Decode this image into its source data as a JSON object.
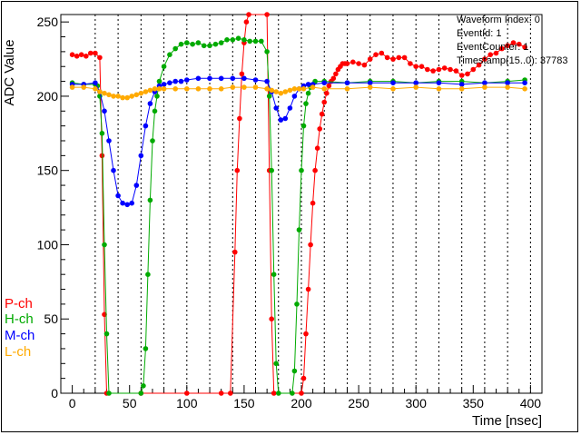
{
  "chart_data": {
    "type": "line",
    "xlabel": "Time [nsec]",
    "ylabel": "ADC Value",
    "xlim": [
      -10,
      410
    ],
    "ylim": [
      0,
      255
    ],
    "x_ticks": [
      0,
      50,
      100,
      150,
      200,
      250,
      300,
      350,
      400
    ],
    "y_ticks": [
      0,
      50,
      100,
      150,
      200,
      250
    ],
    "vertical_gridlines": [
      20,
      40,
      60,
      80,
      100,
      120,
      140,
      160,
      180,
      200,
      220,
      240,
      260,
      280,
      300,
      320,
      340,
      360,
      380,
      400
    ],
    "grid": "vertical dashed",
    "stats_box": [
      "Waveform Index: 0",
      "EventId: 1",
      "EventCounter: 1",
      "Timestamp(15..0): 37783"
    ],
    "legend": [
      {
        "label": "P-ch",
        "color": "#ff0000"
      },
      {
        "label": "H-ch",
        "color": "#00aa00"
      },
      {
        "label": "M-ch",
        "color": "#0000ff"
      },
      {
        "label": "L-ch",
        "color": "#ffaa00"
      }
    ],
    "series": [
      {
        "name": "P-ch",
        "color": "#ff0000",
        "points": [
          [
            0,
            228
          ],
          [
            4,
            227
          ],
          [
            8,
            228
          ],
          [
            12,
            227
          ],
          [
            16,
            229
          ],
          [
            20,
            229
          ],
          [
            24,
            226
          ],
          [
            26,
            160
          ],
          [
            28,
            53
          ],
          [
            30,
            0
          ],
          [
            60,
            0
          ],
          [
            100,
            0
          ],
          [
            130,
            0
          ],
          [
            138,
            0
          ],
          [
            142,
            95
          ],
          [
            144,
            150
          ],
          [
            146,
            185
          ],
          [
            148,
            215
          ],
          [
            150,
            236
          ],
          [
            152,
            250
          ],
          [
            154,
            255
          ],
          [
            170,
            255
          ],
          [
            172,
            150
          ],
          [
            174,
            50
          ],
          [
            176,
            0
          ],
          [
            200,
            0
          ],
          [
            202,
            10
          ],
          [
            204,
            40
          ],
          [
            206,
            70
          ],
          [
            208,
            100
          ],
          [
            210,
            128
          ],
          [
            212,
            150
          ],
          [
            214,
            165
          ],
          [
            216,
            178
          ],
          [
            218,
            188
          ],
          [
            220,
            196
          ],
          [
            222,
            202
          ],
          [
            224,
            207
          ],
          [
            226,
            210
          ],
          [
            228,
            212
          ],
          [
            230,
            215
          ],
          [
            232,
            218
          ],
          [
            234,
            220
          ],
          [
            236,
            222
          ],
          [
            238,
            222
          ],
          [
            240,
            222
          ],
          [
            245,
            223
          ],
          [
            250,
            222
          ],
          [
            255,
            221
          ],
          [
            260,
            225
          ],
          [
            265,
            228
          ],
          [
            270,
            229
          ],
          [
            275,
            226
          ],
          [
            280,
            225
          ],
          [
            285,
            226
          ],
          [
            290,
            226
          ],
          [
            295,
            222
          ],
          [
            300,
            220
          ],
          [
            305,
            220
          ],
          [
            310,
            218
          ],
          [
            315,
            217
          ],
          [
            320,
            218
          ],
          [
            325,
            219
          ],
          [
            330,
            218
          ],
          [
            335,
            217
          ],
          [
            340,
            214
          ],
          [
            345,
            215
          ],
          [
            350,
            218
          ],
          [
            355,
            221
          ],
          [
            360,
            225
          ],
          [
            365,
            228
          ],
          [
            370,
            229
          ],
          [
            375,
            232
          ],
          [
            380,
            234
          ],
          [
            385,
            236
          ],
          [
            390,
            235
          ],
          [
            395,
            233
          ]
        ]
      },
      {
        "name": "H-ch",
        "color": "#00aa00",
        "points": [
          [
            0,
            209
          ],
          [
            10,
            208
          ],
          [
            20,
            208
          ],
          [
            22,
            207
          ],
          [
            24,
            200
          ],
          [
            26,
            175
          ],
          [
            28,
            100
          ],
          [
            30,
            40
          ],
          [
            32,
            0
          ],
          [
            60,
            0
          ],
          [
            62,
            5
          ],
          [
            64,
            30
          ],
          [
            66,
            80
          ],
          [
            68,
            130
          ],
          [
            70,
            170
          ],
          [
            72,
            190
          ],
          [
            74,
            200
          ],
          [
            76,
            210
          ],
          [
            80,
            220
          ],
          [
            85,
            228
          ],
          [
            90,
            232
          ],
          [
            95,
            235
          ],
          [
            100,
            236
          ],
          [
            105,
            235
          ],
          [
            110,
            236
          ],
          [
            115,
            234
          ],
          [
            120,
            234
          ],
          [
            125,
            235
          ],
          [
            130,
            236
          ],
          [
            135,
            238
          ],
          [
            140,
            238
          ],
          [
            145,
            239
          ],
          [
            150,
            238
          ],
          [
            155,
            237
          ],
          [
            160,
            237
          ],
          [
            165,
            237
          ],
          [
            170,
            230
          ],
          [
            172,
            200
          ],
          [
            174,
            150
          ],
          [
            176,
            80
          ],
          [
            178,
            20
          ],
          [
            180,
            0
          ],
          [
            192,
            0
          ],
          [
            194,
            15
          ],
          [
            196,
            60
          ],
          [
            198,
            110
          ],
          [
            200,
            150
          ],
          [
            202,
            180
          ],
          [
            204,
            195
          ],
          [
            206,
            202
          ],
          [
            208,
            206
          ],
          [
            212,
            210
          ],
          [
            220,
            210
          ],
          [
            240,
            209
          ],
          [
            260,
            210
          ],
          [
            280,
            210
          ],
          [
            300,
            209
          ],
          [
            320,
            210
          ],
          [
            340,
            210
          ],
          [
            360,
            209
          ],
          [
            380,
            210
          ],
          [
            395,
            211
          ]
        ]
      },
      {
        "name": "M-ch",
        "color": "#0000ff",
        "points": [
          [
            0,
            208
          ],
          [
            10,
            208
          ],
          [
            20,
            209
          ],
          [
            24,
            203
          ],
          [
            28,
            190
          ],
          [
            32,
            170
          ],
          [
            36,
            150
          ],
          [
            40,
            133
          ],
          [
            44,
            128
          ],
          [
            48,
            127
          ],
          [
            52,
            128
          ],
          [
            56,
            140
          ],
          [
            60,
            160
          ],
          [
            64,
            180
          ],
          [
            68,
            195
          ],
          [
            72,
            203
          ],
          [
            76,
            207
          ],
          [
            80,
            208
          ],
          [
            85,
            209
          ],
          [
            90,
            210
          ],
          [
            95,
            210
          ],
          [
            100,
            211
          ],
          [
            110,
            212
          ],
          [
            120,
            212
          ],
          [
            130,
            212
          ],
          [
            140,
            212
          ],
          [
            150,
            212
          ],
          [
            160,
            211
          ],
          [
            170,
            210
          ],
          [
            174,
            203
          ],
          [
            178,
            192
          ],
          [
            182,
            184
          ],
          [
            186,
            185
          ],
          [
            190,
            192
          ],
          [
            194,
            200
          ],
          [
            198,
            205
          ],
          [
            202,
            207
          ],
          [
            206,
            208
          ],
          [
            210,
            208
          ],
          [
            220,
            209
          ],
          [
            240,
            209
          ],
          [
            260,
            209
          ],
          [
            280,
            209
          ],
          [
            300,
            209
          ],
          [
            320,
            209
          ],
          [
            340,
            208
          ],
          [
            360,
            209
          ],
          [
            380,
            209
          ],
          [
            395,
            209
          ]
        ]
      },
      {
        "name": "L-ch",
        "color": "#ffaa00",
        "points": [
          [
            0,
            206
          ],
          [
            10,
            206
          ],
          [
            20,
            205
          ],
          [
            24,
            203
          ],
          [
            28,
            202
          ],
          [
            32,
            201
          ],
          [
            36,
            200
          ],
          [
            40,
            200
          ],
          [
            44,
            199
          ],
          [
            48,
            199
          ],
          [
            52,
            200
          ],
          [
            56,
            201
          ],
          [
            60,
            202
          ],
          [
            64,
            203
          ],
          [
            68,
            204
          ],
          [
            72,
            205
          ],
          [
            76,
            205
          ],
          [
            80,
            205
          ],
          [
            90,
            205
          ],
          [
            100,
            205
          ],
          [
            110,
            205
          ],
          [
            120,
            205
          ],
          [
            130,
            205
          ],
          [
            140,
            206
          ],
          [
            150,
            206
          ],
          [
            160,
            206
          ],
          [
            170,
            205
          ],
          [
            174,
            204
          ],
          [
            178,
            203
          ],
          [
            182,
            202
          ],
          [
            186,
            203
          ],
          [
            190,
            204
          ],
          [
            194,
            205
          ],
          [
            198,
            205
          ],
          [
            202,
            205
          ],
          [
            210,
            206
          ],
          [
            220,
            205
          ],
          [
            240,
            205
          ],
          [
            260,
            206
          ],
          [
            280,
            205
          ],
          [
            300,
            206
          ],
          [
            320,
            205
          ],
          [
            340,
            205
          ],
          [
            360,
            206
          ],
          [
            380,
            206
          ],
          [
            395,
            205
          ]
        ]
      }
    ]
  }
}
